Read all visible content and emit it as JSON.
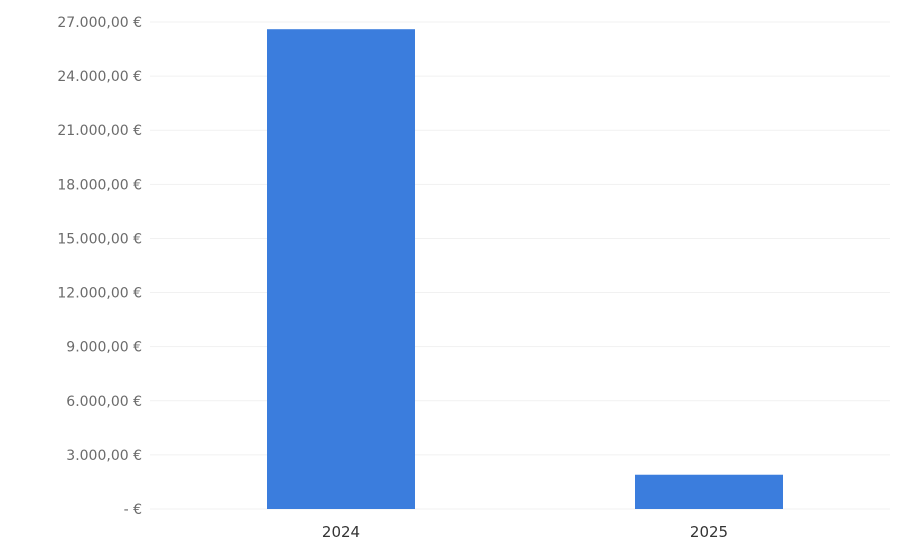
{
  "chart_data": {
    "type": "bar",
    "categories": [
      "2024",
      "2025"
    ],
    "values": [
      26600,
      1900
    ],
    "ylim": [
      0,
      27000
    ],
    "yticks": [
      0,
      3000,
      6000,
      9000,
      12000,
      15000,
      18000,
      21000,
      24000,
      27000
    ],
    "ytick_labels": [
      "-  €",
      "3.000,00 €",
      "6.000,00 €",
      "9.000,00 €",
      "12.000,00 €",
      "15.000,00 €",
      "18.000,00 €",
      "21.000,00 €",
      "24.000,00 €",
      "27.000,00 €"
    ],
    "grid": true,
    "bar_color": "#3b7ddd",
    "title": "",
    "xlabel": "",
    "ylabel": ""
  }
}
